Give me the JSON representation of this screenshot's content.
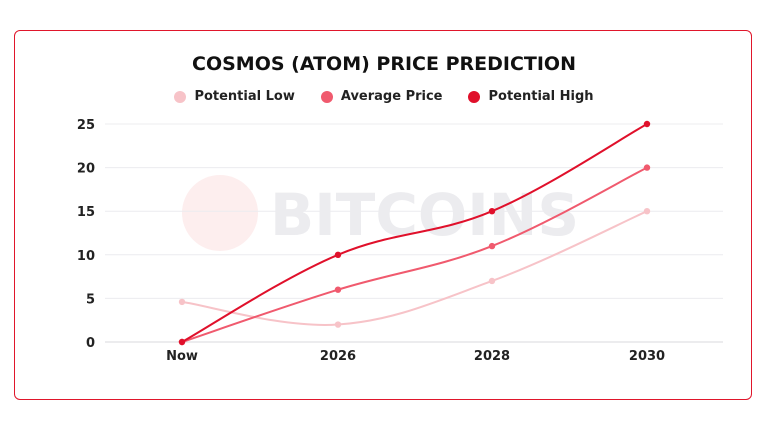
{
  "chart_data": {
    "type": "line",
    "title": "COSMOS (ATOM) PRICE PREDICTION",
    "categories": [
      "Now",
      "2026",
      "2028",
      "2030"
    ],
    "series": [
      {
        "name": "Potential Low",
        "values": [
          4.6,
          2,
          7,
          15
        ],
        "color": "#f7c3c8"
      },
      {
        "name": "Average Price",
        "values": [
          0,
          6,
          11,
          20
        ],
        "color": "#f05a6e"
      },
      {
        "name": "Potential High",
        "values": [
          0,
          10,
          15,
          25
        ],
        "color": "#e0102b"
      }
    ],
    "yticks": [
      "0",
      "5",
      "10",
      "15",
      "20",
      "25"
    ],
    "ylim": [
      0,
      25
    ],
    "grid": true,
    "legend": "top",
    "smooth": true
  },
  "watermark": "99BITCOINS",
  "frame_color": "#e0162b"
}
